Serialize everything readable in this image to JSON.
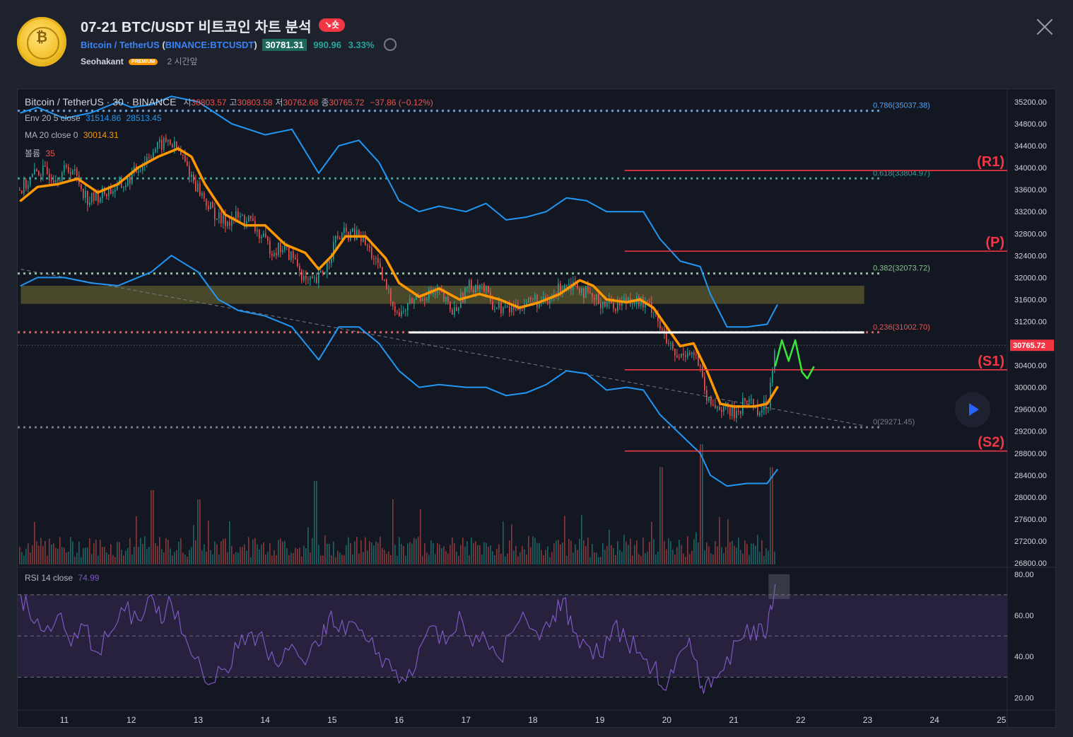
{
  "header": {
    "title": "07-21 BTC/USDT 비트코인 차트 분석",
    "badge": "↘숏",
    "pair": "Bitcoin / TetherUS",
    "symbol": "BINANCE:BTCUSDT",
    "price": "30781.31",
    "change": "990.96",
    "change_pct": "3.33%",
    "author": "Seohakant",
    "premium": "PREMIUM",
    "time": "2 시간앞"
  },
  "legend": {
    "main_label": "Bitcoin / TetherUS · 30 · BINANCE",
    "o_k": "시",
    "o": "30803.57",
    "h_k": "고",
    "h": "30803.58",
    "l_k": "저",
    "l": "30762.68",
    "c_k": "종",
    "c": "30765.72",
    "chg": "−37.86 (−0.12%)",
    "env_k": "Env 20 5 close",
    "env_up": "31514.86",
    "env_dn": "28513.45",
    "ma_k": "MA 20 close 0",
    "ma_v": "30014.31",
    "vol_k": "볼륨",
    "vol_v": "35",
    "rsi_k": "RSI 14 close",
    "rsi_v": "74.99"
  },
  "colors": {
    "background": "#131722",
    "envelope": "#2196f3",
    "ma": "#ff9800",
    "resistance": "#f23645",
    "rsi": "#7e57c2",
    "up": "#26a69a",
    "down": "#ef5350"
  },
  "chart_data": {
    "type": "candlestick",
    "symbol": "Bitcoin / TetherUS",
    "interval": "30",
    "exchange": "BINANCE",
    "x_ticks": [
      "11",
      "12",
      "13",
      "14",
      "15",
      "16",
      "17",
      "18",
      "19",
      "20",
      "21",
      "22",
      "23",
      "24",
      "25"
    ],
    "y_ticks": [
      "35200.00",
      "34800.00",
      "34400.00",
      "34000.00",
      "33600.00",
      "33200.00",
      "32800.00",
      "32400.00",
      "32000.00",
      "31600.00",
      "31200.00",
      "30800.00",
      "30400.00",
      "30000.00",
      "29600.00",
      "29200.00",
      "28800.00",
      "28400.00",
      "28000.00",
      "27600.00",
      "27200.00",
      "26800.00"
    ],
    "ylim": [
      26800,
      35200
    ],
    "last_price_label": "30765.72",
    "close_path": [
      [
        10.35,
        33600
      ],
      [
        10.6,
        33950
      ],
      [
        10.85,
        33850
      ],
      [
        11.1,
        34000
      ],
      [
        11.35,
        33400
      ],
      [
        11.6,
        33550
      ],
      [
        11.9,
        33700
      ],
      [
        12.1,
        34000
      ],
      [
        12.3,
        34300
      ],
      [
        12.55,
        34500
      ],
      [
        12.75,
        34200
      ],
      [
        12.95,
        33700
      ],
      [
        13.15,
        33300
      ],
      [
        13.35,
        33000
      ],
      [
        13.55,
        33100
      ],
      [
        13.75,
        33050
      ],
      [
        13.95,
        32700
      ],
      [
        14.1,
        32500
      ],
      [
        14.25,
        32550
      ],
      [
        14.45,
        32300
      ],
      [
        14.6,
        31900
      ],
      [
        14.75,
        31900
      ],
      [
        14.9,
        32200
      ],
      [
        15.05,
        32700
      ],
      [
        15.2,
        32800
      ],
      [
        15.4,
        32750
      ],
      [
        15.6,
        32400
      ],
      [
        15.8,
        31800
      ],
      [
        16.0,
        31300
      ],
      [
        16.2,
        31600
      ],
      [
        16.4,
        31700
      ],
      [
        16.6,
        31700
      ],
      [
        16.8,
        31350
      ],
      [
        17.0,
        31800
      ],
      [
        17.2,
        31900
      ],
      [
        17.4,
        31500
      ],
      [
        17.6,
        31400
      ],
      [
        17.8,
        31500
      ],
      [
        18.0,
        31600
      ],
      [
        18.2,
        31500
      ],
      [
        18.45,
        31900
      ],
      [
        18.65,
        31900
      ],
      [
        18.85,
        31600
      ],
      [
        19.05,
        31550
      ],
      [
        19.25,
        31500
      ],
      [
        19.45,
        31650
      ],
      [
        19.65,
        31500
      ],
      [
        19.8,
        31450
      ],
      [
        19.95,
        30900
      ],
      [
        20.15,
        30500
      ],
      [
        20.3,
        30700
      ],
      [
        20.45,
        30500
      ],
      [
        20.6,
        29700
      ],
      [
        20.8,
        29650
      ],
      [
        21.0,
        29500
      ],
      [
        21.2,
        29800
      ],
      [
        21.35,
        29600
      ],
      [
        21.5,
        29650
      ],
      [
        21.55,
        30200
      ],
      [
        21.6,
        30770
      ]
    ],
    "series": [
      {
        "name": "Env 20 5 close upper",
        "values": [
          [
            10.35,
            35000
          ],
          [
            10.6,
            35100
          ],
          [
            11.0,
            34900
          ],
          [
            11.4,
            35000
          ],
          [
            11.8,
            35200
          ],
          [
            12.0,
            35100
          ],
          [
            12.3,
            35150
          ],
          [
            12.6,
            35300
          ],
          [
            13.0,
            35200
          ],
          [
            13.5,
            34800
          ],
          [
            14.0,
            34600
          ],
          [
            14.4,
            34700
          ],
          [
            14.8,
            33900
          ],
          [
            15.1,
            34400
          ],
          [
            15.4,
            34500
          ],
          [
            15.7,
            34100
          ],
          [
            16.0,
            33400
          ],
          [
            16.3,
            33200
          ],
          [
            16.6,
            33300
          ],
          [
            17.0,
            33200
          ],
          [
            17.3,
            33350
          ],
          [
            17.6,
            33050
          ],
          [
            17.9,
            33100
          ],
          [
            18.2,
            33200
          ],
          [
            18.5,
            33450
          ],
          [
            18.8,
            33400
          ],
          [
            19.1,
            33200
          ],
          [
            19.4,
            33200
          ],
          [
            19.65,
            33200
          ],
          [
            19.9,
            32700
          ],
          [
            20.2,
            32300
          ],
          [
            20.5,
            32200
          ],
          [
            20.65,
            31700
          ],
          [
            20.9,
            31100
          ],
          [
            21.2,
            31100
          ],
          [
            21.5,
            31150
          ],
          [
            21.65,
            31500
          ]
        ]
      },
      {
        "name": "Env 20 5 close lower",
        "values": [
          [
            10.35,
            31850
          ],
          [
            10.6,
            32000
          ],
          [
            11.0,
            32000
          ],
          [
            11.4,
            31900
          ],
          [
            11.8,
            31850
          ],
          [
            12.0,
            31950
          ],
          [
            12.3,
            32100
          ],
          [
            12.6,
            32400
          ],
          [
            13.0,
            32100
          ],
          [
            13.3,
            31600
          ],
          [
            13.6,
            31400
          ],
          [
            14.0,
            31300
          ],
          [
            14.4,
            31100
          ],
          [
            14.8,
            30500
          ],
          [
            15.1,
            31100
          ],
          [
            15.4,
            31100
          ],
          [
            15.7,
            30800
          ],
          [
            16.0,
            30300
          ],
          [
            16.3,
            30000
          ],
          [
            16.6,
            30050
          ],
          [
            17.0,
            30000
          ],
          [
            17.3,
            30000
          ],
          [
            17.6,
            29850
          ],
          [
            17.9,
            29900
          ],
          [
            18.2,
            30050
          ],
          [
            18.5,
            30300
          ],
          [
            18.8,
            30250
          ],
          [
            19.1,
            29950
          ],
          [
            19.4,
            30000
          ],
          [
            19.65,
            29950
          ],
          [
            19.9,
            29500
          ],
          [
            20.2,
            29150
          ],
          [
            20.5,
            28800
          ],
          [
            20.65,
            28400
          ],
          [
            20.9,
            28200
          ],
          [
            21.2,
            28250
          ],
          [
            21.5,
            28250
          ],
          [
            21.65,
            28500
          ]
        ]
      },
      {
        "name": "MA 20 close 0",
        "values": [
          [
            10.35,
            33400
          ],
          [
            10.6,
            33650
          ],
          [
            10.9,
            33700
          ],
          [
            11.2,
            33800
          ],
          [
            11.5,
            33550
          ],
          [
            11.8,
            33700
          ],
          [
            12.1,
            34000
          ],
          [
            12.4,
            34200
          ],
          [
            12.7,
            34350
          ],
          [
            12.9,
            34200
          ],
          [
            13.1,
            33700
          ],
          [
            13.4,
            33150
          ],
          [
            13.7,
            32950
          ],
          [
            14.0,
            32950
          ],
          [
            14.3,
            32600
          ],
          [
            14.6,
            32450
          ],
          [
            14.8,
            32150
          ],
          [
            15.0,
            32400
          ],
          [
            15.2,
            32750
          ],
          [
            15.5,
            32750
          ],
          [
            15.8,
            32350
          ],
          [
            16.0,
            31900
          ],
          [
            16.3,
            31650
          ],
          [
            16.6,
            31800
          ],
          [
            16.9,
            31600
          ],
          [
            17.2,
            31700
          ],
          [
            17.5,
            31600
          ],
          [
            17.8,
            31450
          ],
          [
            18.1,
            31550
          ],
          [
            18.4,
            31700
          ],
          [
            18.7,
            31950
          ],
          [
            18.9,
            31850
          ],
          [
            19.1,
            31600
          ],
          [
            19.4,
            31550
          ],
          [
            19.6,
            31600
          ],
          [
            19.8,
            31450
          ],
          [
            20.0,
            31100
          ],
          [
            20.2,
            30750
          ],
          [
            20.4,
            30800
          ],
          [
            20.6,
            30300
          ],
          [
            20.8,
            29700
          ],
          [
            21.0,
            29650
          ],
          [
            21.3,
            29650
          ],
          [
            21.5,
            29700
          ],
          [
            21.65,
            30000
          ]
        ]
      },
      {
        "name": "RSI 14 close",
        "values": [
          [
            10.35,
            70
          ],
          [
            10.5,
            58
          ],
          [
            10.7,
            52
          ],
          [
            10.9,
            60
          ],
          [
            11.1,
            45
          ],
          [
            11.3,
            55
          ],
          [
            11.5,
            42
          ],
          [
            11.7,
            52
          ],
          [
            11.9,
            62
          ],
          [
            12.1,
            58
          ],
          [
            12.3,
            70
          ],
          [
            12.45,
            56
          ],
          [
            12.6,
            66
          ],
          [
            12.8,
            50
          ],
          [
            13.0,
            40
          ],
          [
            13.2,
            27
          ],
          [
            13.4,
            34
          ],
          [
            13.6,
            44
          ],
          [
            13.8,
            52
          ],
          [
            14.0,
            45
          ],
          [
            14.2,
            35
          ],
          [
            14.4,
            46
          ],
          [
            14.6,
            36
          ],
          [
            14.8,
            45
          ],
          [
            14.95,
            59
          ],
          [
            15.1,
            52
          ],
          [
            15.3,
            57
          ],
          [
            15.5,
            48
          ],
          [
            15.7,
            42
          ],
          [
            15.9,
            33
          ],
          [
            16.1,
            28
          ],
          [
            16.3,
            44
          ],
          [
            16.5,
            55
          ],
          [
            16.7,
            46
          ],
          [
            16.9,
            62
          ],
          [
            17.1,
            45
          ],
          [
            17.3,
            48
          ],
          [
            17.5,
            39
          ],
          [
            17.7,
            52
          ],
          [
            17.9,
            58
          ],
          [
            18.1,
            48
          ],
          [
            18.3,
            60
          ],
          [
            18.45,
            68
          ],
          [
            18.6,
            52
          ],
          [
            18.8,
            46
          ],
          [
            19.0,
            40
          ],
          [
            19.2,
            55
          ],
          [
            19.4,
            47
          ],
          [
            19.6,
            42
          ],
          [
            19.8,
            35
          ],
          [
            19.95,
            24
          ],
          [
            20.1,
            32
          ],
          [
            20.3,
            45
          ],
          [
            20.45,
            38
          ],
          [
            20.55,
            22
          ],
          [
            20.7,
            30
          ],
          [
            20.9,
            40
          ],
          [
            21.1,
            48
          ],
          [
            21.3,
            55
          ],
          [
            21.45,
            50
          ],
          [
            21.55,
            65
          ],
          [
            21.62,
            75
          ]
        ]
      }
    ],
    "levels": [
      {
        "label": "0.786(35037.38)",
        "value": 35037.38,
        "color": "#4fa3f7",
        "style": "dotted"
      },
      {
        "label": "0.618(33804.97)",
        "value": 33804.97,
        "color": "#26a69a",
        "style": "dotted"
      },
      {
        "label": "0.382(32073.72)",
        "value": 32073.72,
        "color": "#81c784",
        "style": "dotted"
      },
      {
        "label": "0.236(31002.70)",
        "value": 31002.7,
        "color": "#ef5350",
        "style": "dotted"
      },
      {
        "label": "0(29271.45)",
        "value": 29271.45,
        "color": "#787b86",
        "style": "dotted"
      }
    ],
    "sr_lines": [
      {
        "label": "(R1)",
        "value": 33950
      },
      {
        "label": "(P)",
        "value": 32480
      },
      {
        "label": "(S1)",
        "value": 30320
      },
      {
        "label": "(S2)",
        "value": 28840
      }
    ],
    "white_line": {
      "value": 31000,
      "x_from": 16.15,
      "x_to": 22.95
    },
    "zone": {
      "from": 31520,
      "to": 31850,
      "x_from": 10.35,
      "x_to": 22.95
    },
    "trendline": [
      [
        10.35,
        32150
      ],
      [
        22.95,
        29300
      ]
    ],
    "projection": [
      [
        21.62,
        30380
      ],
      [
        21.72,
        30860
      ],
      [
        21.82,
        30480
      ],
      [
        21.92,
        30860
      ],
      [
        22.02,
        30280
      ],
      [
        22.1,
        30160
      ],
      [
        22.2,
        30380
      ]
    ],
    "rsi": {
      "ylim": [
        15,
        82
      ],
      "y_ticks": [
        "80.00",
        "60.00",
        "40.00",
        "20.00"
      ],
      "bands": [
        70,
        50,
        30
      ]
    },
    "volume_profile": {
      "spikes": [
        [
          12.3,
          0.5
        ],
        [
          13.0,
          0.4
        ],
        [
          14.75,
          0.6
        ],
        [
          15.9,
          0.4
        ],
        [
          19.9,
          0.75
        ],
        [
          20.5,
          1.0
        ],
        [
          21.55,
          0.75
        ]
      ]
    }
  }
}
